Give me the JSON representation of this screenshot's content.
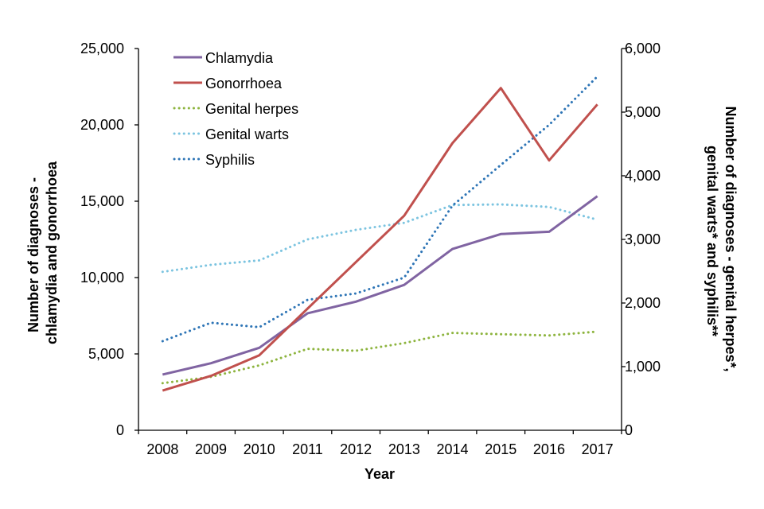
{
  "chart_data": {
    "type": "line",
    "title": "",
    "categories": [
      "2008",
      "2009",
      "2010",
      "2011",
      "2012",
      "2013",
      "2014",
      "2015",
      "2016",
      "2017"
    ],
    "xlabel": "Year",
    "ylabel": "Number of diagnoses - chlamydia and gonorrhoea",
    "ylabel_lines": [
      "Number of diagnoses -",
      "chlamydia and gonorrhoea"
    ],
    "y2label": "Number of diagnoses - genital herpes*, genital warts* and syphilis**",
    "y2label_lines": [
      "Number of diagnoses - genital herpes*,",
      "genital warts* and syphilis**"
    ],
    "ylim": [
      0,
      25000
    ],
    "y2lim": [
      0,
      6000
    ],
    "yticks": [
      0,
      5000,
      10000,
      15000,
      20000,
      25000
    ],
    "ytick_labels": [
      "0",
      "5,000",
      "10,000",
      "15,000",
      "20,000",
      "25,000"
    ],
    "y2ticks": [
      0,
      1000,
      2000,
      3000,
      4000,
      5000,
      6000
    ],
    "y2tick_labels": [
      "0",
      "1,000",
      "2,000",
      "3,000",
      "4,000",
      "5,000",
      "6,000"
    ],
    "grid": false,
    "legend_position": "top-left",
    "series": [
      {
        "name": "Chlamydia",
        "axis": "left",
        "style": "solid",
        "color": "#8064A2",
        "values": [
          3650,
          4390,
          5400,
          7660,
          8420,
          9520,
          11870,
          12850,
          13000,
          15330
        ]
      },
      {
        "name": "Gonorrhoea",
        "axis": "left",
        "style": "solid",
        "color": "#C0504D",
        "values": [
          2600,
          3560,
          4910,
          7970,
          11010,
          14050,
          18800,
          22410,
          17670,
          21340
        ]
      },
      {
        "name": "Genital herpes",
        "axis": "right",
        "style": "dotted",
        "color": "#8DB43E",
        "values": [
          740,
          840,
          1020,
          1280,
          1250,
          1370,
          1530,
          1510,
          1490,
          1550
        ]
      },
      {
        "name": "Genital warts",
        "axis": "right",
        "style": "dotted",
        "color": "#7CC4E0",
        "values": [
          2490,
          2600,
          2670,
          3000,
          3150,
          3260,
          3540,
          3550,
          3510,
          3310
        ]
      },
      {
        "name": "Syphilis",
        "axis": "right",
        "style": "dotted",
        "color": "#2E75B6",
        "values": [
          1400,
          1690,
          1620,
          2050,
          2150,
          2400,
          3530,
          4170,
          4800,
          5560
        ]
      }
    ]
  }
}
